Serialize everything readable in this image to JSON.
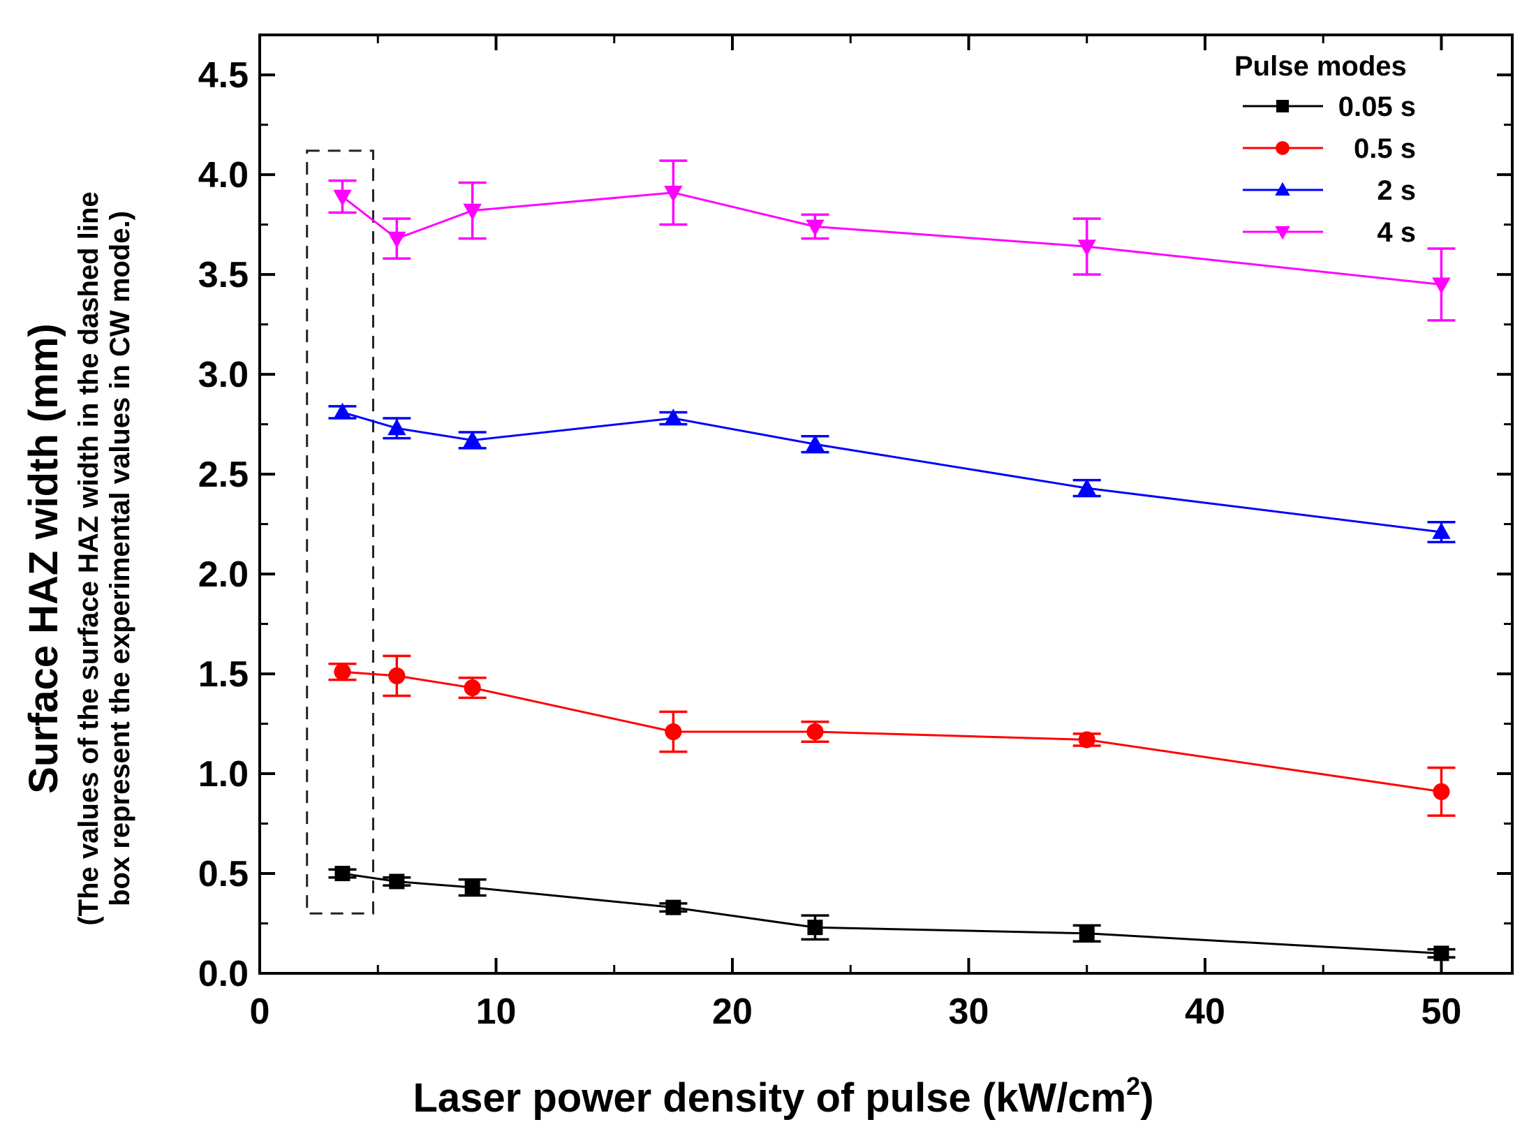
{
  "chart_data": {
    "type": "line",
    "xlabel_main": "Laser power density of pulse (kW/cm",
    "xlabel_sup": "2",
    "xlabel_close": ")",
    "ylabel": "Surface HAZ width (mm)",
    "ylabel_note_line1": "(The values of the surface HAZ width in the dashed line",
    "ylabel_note_line2": "box represent the experimental values in CW mode.)",
    "xlim": [
      0,
      53
    ],
    "ylim": [
      0,
      4.7
    ],
    "xticks": [
      0,
      10,
      20,
      30,
      40,
      50
    ],
    "xtick_labels": [
      "0",
      "10",
      "20",
      "30",
      "40",
      "50"
    ],
    "yticks": [
      0,
      0.5,
      1.0,
      1.5,
      2.0,
      2.5,
      3.0,
      3.5,
      4.0,
      4.5
    ],
    "ytick_labels": [
      "0.0",
      "0.5",
      "1.0",
      "1.5",
      "2.0",
      "2.5",
      "3.0",
      "3.5",
      "4.0",
      "4.5"
    ],
    "legend_title": "Pulse modes",
    "highlight_box": {
      "x": [
        2,
        4.8
      ],
      "y": [
        0.3,
        4.12
      ]
    },
    "series": [
      {
        "name": "0.05 s",
        "color": "#000000",
        "marker": "square",
        "x": [
          3.5,
          5.8,
          9.0,
          17.5,
          23.5,
          35.0,
          50.0
        ],
        "y": [
          0.5,
          0.46,
          0.43,
          0.33,
          0.23,
          0.2,
          0.1
        ],
        "err": [
          0.02,
          0.02,
          0.04,
          0.02,
          0.06,
          0.04,
          0.02
        ]
      },
      {
        "name": "0.5 s",
        "color": "#ff0000",
        "marker": "circle",
        "x": [
          3.5,
          5.8,
          9.0,
          17.5,
          23.5,
          35.0,
          50.0
        ],
        "y": [
          1.51,
          1.49,
          1.43,
          1.21,
          1.21,
          1.17,
          0.91
        ],
        "err": [
          0.04,
          0.1,
          0.05,
          0.1,
          0.05,
          0.03,
          0.12
        ]
      },
      {
        "name": "2 s",
        "color": "#0000ff",
        "marker": "triangle-up",
        "x": [
          3.5,
          5.8,
          9.0,
          17.5,
          23.5,
          35.0,
          50.0
        ],
        "y": [
          2.81,
          2.73,
          2.67,
          2.78,
          2.65,
          2.43,
          2.21
        ],
        "err": [
          0.03,
          0.05,
          0.04,
          0.03,
          0.04,
          0.04,
          0.05
        ]
      },
      {
        "name": "4 s",
        "color": "#ff00ff",
        "marker": "triangle-down",
        "x": [
          3.5,
          5.8,
          9.0,
          17.5,
          23.5,
          35.0,
          50.0
        ],
        "y": [
          3.89,
          3.68,
          3.82,
          3.91,
          3.74,
          3.64,
          3.45
        ],
        "err": [
          0.08,
          0.1,
          0.14,
          0.16,
          0.06,
          0.14,
          0.18
        ]
      }
    ]
  }
}
